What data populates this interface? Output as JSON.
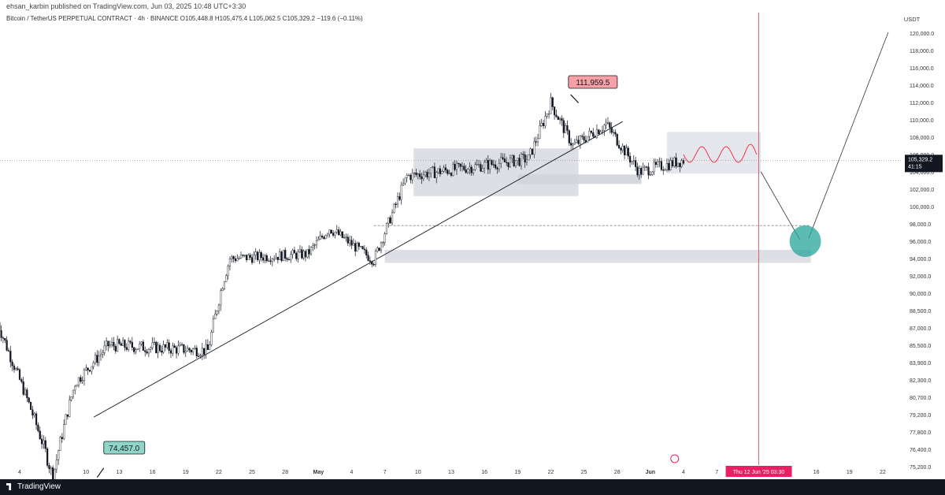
{
  "header": {
    "published": "ehsan_karbin published on TradingView.com, Jun 03, 2025 10:48 UTC+3:30",
    "symbol_info": "Bitcoin / TetherUS PERPETUAL CONTRACT · 4h · BINANCE  O105,448.8  H105,475.4  L105,062.5  C105,329.2  −119.6 (−0.11%)"
  },
  "footer": {
    "brand": "TradingView"
  },
  "chart_data": {
    "type": "line",
    "currency": "USDT",
    "y_ticks": [
      "120,000.0",
      "118,000.0",
      "116,000.0",
      "114,000.0",
      "112,000.0",
      "110,000.0",
      "108,000.0",
      "106,000.0",
      "104,000.0",
      "102,000.0",
      "100,000.0",
      "98,000.0",
      "96,000.0",
      "94,000.0",
      "92,000.0",
      "90,000.0",
      "88,500.0",
      "87,000.0",
      "85,500.0",
      "83,900.0",
      "82,300.0",
      "80,700.0",
      "79,200.0",
      "77,800.0",
      "76,400.0",
      "75,200.0"
    ],
    "x_ticks": [
      "4",
      "7",
      "10",
      "13",
      "16",
      "19",
      "22",
      "25",
      "28",
      "May",
      "4",
      "7",
      "10",
      "13",
      "16",
      "19",
      "22",
      "25",
      "28",
      "Jun",
      "4",
      "7",
      "10",
      "13",
      "16",
      "19",
      "22"
    ],
    "price_label": "105,329.2",
    "countdown": "41:15",
    "time_marker": "Thu 12 Jun '25   03:30",
    "annotations": {
      "high": "111,959.5",
      "low": "74,457.0"
    },
    "key_points": [
      {
        "date": "Apr 2",
        "price": 87500
      },
      {
        "date": "Apr 7",
        "price": 74457
      },
      {
        "date": "Apr 9",
        "price": 82000
      },
      {
        "date": "Apr 12",
        "price": 85500
      },
      {
        "date": "Apr 21",
        "price": 85000
      },
      {
        "date": "Apr 23",
        "price": 94000
      },
      {
        "date": "Apr 30",
        "price": 94500
      },
      {
        "date": "May 2",
        "price": 97500
      },
      {
        "date": "May 6",
        "price": 93800
      },
      {
        "date": "May 9",
        "price": 103500
      },
      {
        "date": "May 20",
        "price": 105500
      },
      {
        "date": "May 22",
        "price": 111959.5
      },
      {
        "date": "May 24",
        "price": 107000
      },
      {
        "date": "May 27",
        "price": 109500
      },
      {
        "date": "May 30",
        "price": 104000
      },
      {
        "date": "Jun 3",
        "price": 105329.2
      }
    ],
    "colors": {
      "candle": "#131722",
      "marker": "#f23645",
      "target": "#26a69a",
      "zone": "#d1d4dc",
      "high_label": "#f7a1a6",
      "low_label": "#8fd6c9"
    }
  }
}
